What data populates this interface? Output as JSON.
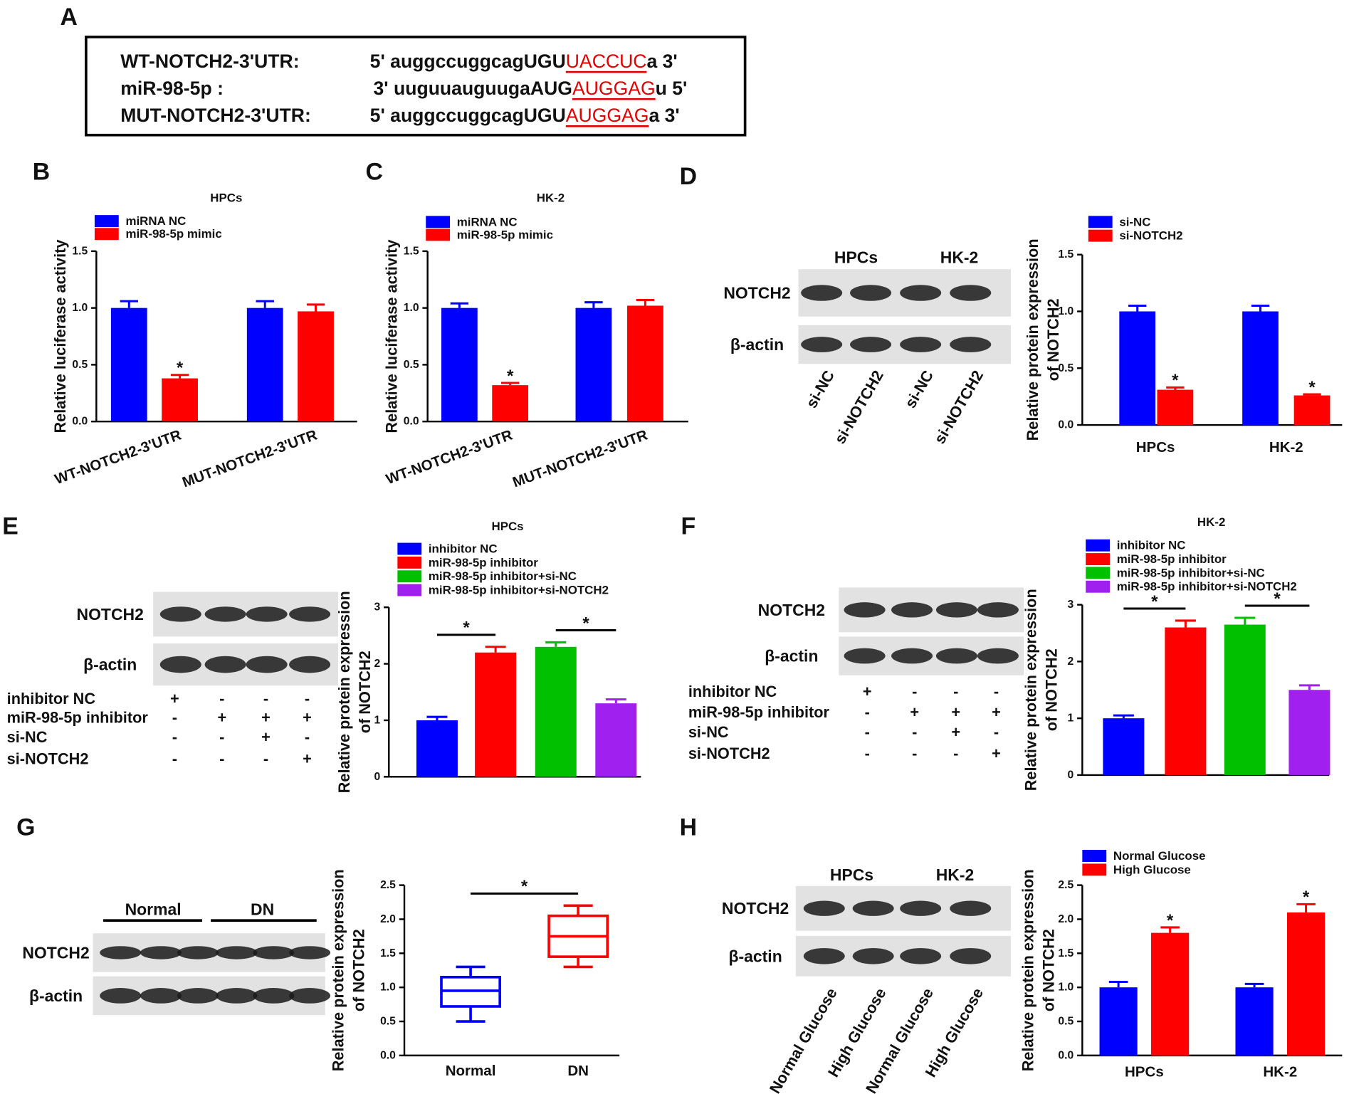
{
  "panel_a": {
    "letter": "A",
    "rows": [
      {
        "label": "WT-NOTCH2-3'UTR:",
        "prefix": "5' auggccuggcagUGU",
        "site": "UACCUC",
        "suffix": "a 3'"
      },
      {
        "label": "miR-98-5p :",
        "prefix": "3' uuguuauguugaAUG",
        "site": "AUGGAG",
        "suffix": "u 5'"
      },
      {
        "label": "MUT-NOTCH2-3'UTR:",
        "prefix": "5' auggccuggcagUGU",
        "site": "AUGGAG",
        "suffix": "a 3'"
      }
    ]
  },
  "blots": [
    {
      "letter": "D",
      "headers": [
        "HPCs",
        "HK-2"
      ],
      "rows": [
        "NOTCH2",
        "β-actin"
      ],
      "lanes": [
        "si-NC",
        "si-NOTCH2",
        "si-NC",
        "si-NOTCH2"
      ]
    },
    {
      "letter": "E",
      "rows": [
        "NOTCH2",
        "β-actin"
      ],
      "conditions": [
        {
          "label": "inhibitor NC",
          "signs": [
            "+",
            "-",
            "-",
            "-"
          ]
        },
        {
          "label": "miR-98-5p inhibitor",
          "signs": [
            "-",
            "+",
            "+",
            "+"
          ]
        },
        {
          "label": "si-NC",
          "signs": [
            "-",
            "-",
            "+",
            "-"
          ]
        },
        {
          "label": "si-NOTCH2",
          "signs": [
            "-",
            "-",
            "-",
            "+"
          ]
        }
      ]
    },
    {
      "letter": "F",
      "rows": [
        "NOTCH2",
        "β-actin"
      ],
      "conditions": [
        {
          "label": "inhibitor NC",
          "signs": [
            "+",
            "-",
            "-",
            "-"
          ]
        },
        {
          "label": "miR-98-5p inhibitor",
          "signs": [
            "-",
            "+",
            "+",
            "+"
          ]
        },
        {
          "label": "si-NC",
          "signs": [
            "-",
            "-",
            "+",
            "-"
          ]
        },
        {
          "label": "si-NOTCH2",
          "signs": [
            "-",
            "-",
            "-",
            "+"
          ]
        }
      ]
    },
    {
      "letter": "G",
      "groups": [
        "Normal",
        "DN"
      ],
      "rows": [
        "NOTCH2",
        "β-actin"
      ]
    },
    {
      "letter": "H",
      "headers": [
        "HPCs",
        "HK-2"
      ],
      "rows": [
        "NOTCH2",
        "β-actin"
      ],
      "lanes": [
        "Normal Glucose",
        "High Glucose",
        "Normal Glucose",
        "High Glucose"
      ]
    }
  ],
  "chart_data": [
    {
      "type": "bar",
      "letter": "B",
      "title": "HPCs",
      "ylabel": [
        "Relative luciferase activity"
      ],
      "categories": [
        "WT-NOTCH2-3'UTR",
        "MUT-NOTCH2-3'UTR"
      ],
      "series": [
        {
          "name": "miRNA NC",
          "color": "#0000ff",
          "values": [
            1.0,
            1.0
          ],
          "errors": [
            0.06,
            0.06
          ],
          "significance": [
            null,
            null
          ]
        },
        {
          "name": "miR-98-5p mimic",
          "color": "#ff0000",
          "values": [
            0.38,
            0.97
          ],
          "errors": [
            0.03,
            0.06
          ],
          "significance": [
            "*",
            null
          ]
        }
      ],
      "ylim": [
        0,
        1.5
      ],
      "yticks": [
        {
          "value": 0,
          "label": "0.0"
        },
        {
          "value": 0.5,
          "label": "0.5"
        },
        {
          "value": 1,
          "label": "1.0"
        },
        {
          "value": 1.5,
          "label": "1.5"
        }
      ]
    },
    {
      "type": "bar",
      "letter": "C",
      "title": "HK-2",
      "ylabel": [
        "Relative luciferase activity"
      ],
      "categories": [
        "WT-NOTCH2-3'UTR",
        "MUT-NOTCH2-3'UTR"
      ],
      "series": [
        {
          "name": "miRNA NC",
          "color": "#0000ff",
          "values": [
            1.0,
            1.0
          ],
          "errors": [
            0.04,
            0.05
          ],
          "significance": [
            null,
            null
          ]
        },
        {
          "name": "miR-98-5p mimic",
          "color": "#ff0000",
          "values": [
            0.32,
            1.02
          ],
          "errors": [
            0.02,
            0.05
          ],
          "significance": [
            "*",
            null
          ]
        }
      ],
      "ylim": [
        0,
        1.5
      ],
      "yticks": [
        {
          "value": 0,
          "label": "0.0"
        },
        {
          "value": 0.5,
          "label": "0.5"
        },
        {
          "value": 1,
          "label": "1.0"
        },
        {
          "value": 1.5,
          "label": "1.5"
        }
      ]
    },
    {
      "type": "bar",
      "ylabel": [
        "Relative protein expression",
        "of NOTCH2"
      ],
      "categories": [
        "HPCs",
        "HK-2"
      ],
      "series": [
        {
          "name": "si-NC",
          "color": "#0000ff",
          "values": [
            1.0,
            1.0
          ],
          "errors": [
            0.05,
            0.05
          ],
          "significance": [
            null,
            null
          ]
        },
        {
          "name": "si-NOTCH2",
          "color": "#ff0000",
          "values": [
            0.31,
            0.26
          ],
          "errors": [
            0.02,
            0.01
          ],
          "significance": [
            "*",
            "*"
          ]
        }
      ],
      "ylim": [
        0,
        1.5
      ],
      "yticks": [
        {
          "value": 0,
          "label": "0.0"
        },
        {
          "value": 0.5,
          "label": "0.5"
        },
        {
          "value": 1,
          "label": "1.0"
        },
        {
          "value": 1.5,
          "label": "1.5"
        }
      ]
    },
    {
      "type": "bar",
      "title": "HPCs",
      "ylabel": [
        "Relative protein expression",
        "of NOTCH2"
      ],
      "categories": [
        null
      ],
      "series": [
        {
          "name": "inhibitor NC",
          "color": "#0000ff",
          "values": [
            1.0
          ],
          "errors": [
            0.06
          ]
        },
        {
          "name": "miR-98-5p inhibitor",
          "color": "#ff0000",
          "values": [
            2.2
          ],
          "errors": [
            0.1
          ]
        },
        {
          "name": "miR-98-5p inhibitor+si-NC",
          "color": "#00c000",
          "values": [
            2.3
          ],
          "errors": [
            0.08
          ]
        },
        {
          "name": "miR-98-5p inhibitor+si-NOTCH2",
          "color": "#a020f0",
          "values": [
            1.3
          ],
          "errors": [
            0.07
          ]
        }
      ],
      "comparisons": [
        {
          "label": "*",
          "between": [
            "inhibitor NC",
            "miR-98-5p inhibitor"
          ]
        },
        {
          "label": "*",
          "between": [
            "miR-98-5p inhibitor+si-NC",
            "miR-98-5p inhibitor+si-NOTCH2"
          ]
        }
      ],
      "ylim": [
        0,
        3
      ],
      "yticks": [
        0,
        1,
        2,
        3
      ]
    },
    {
      "type": "bar",
      "title": "HK-2",
      "ylabel": [
        "Relative protein expression",
        "of NOTCH2"
      ],
      "categories": [
        null
      ],
      "series": [
        {
          "name": "inhibitor NC",
          "color": "#0000ff",
          "values": [
            1.0
          ],
          "errors": [
            0.05
          ]
        },
        {
          "name": "miR-98-5p inhibitor",
          "color": "#ff0000",
          "values": [
            2.6
          ],
          "errors": [
            0.12
          ]
        },
        {
          "name": "miR-98-5p inhibitor+si-NC",
          "color": "#00c000",
          "values": [
            2.65
          ],
          "errors": [
            0.12
          ]
        },
        {
          "name": "miR-98-5p inhibitor+si-NOTCH2",
          "color": "#a020f0",
          "values": [
            1.5
          ],
          "errors": [
            0.08
          ]
        }
      ],
      "comparisons": [
        {
          "label": "*",
          "between": [
            "inhibitor NC",
            "miR-98-5p inhibitor"
          ]
        },
        {
          "label": "*",
          "between": [
            "miR-98-5p inhibitor+si-NC",
            "miR-98-5p inhibitor+si-NOTCH2"
          ]
        }
      ],
      "ylim": [
        0,
        3
      ],
      "yticks": [
        0,
        1,
        2,
        3
      ]
    },
    {
      "type": "box",
      "ylabel": [
        "Relative protein expression",
        "of NOTCH2"
      ],
      "categories": [
        "Normal",
        "DN"
      ],
      "colors": [
        "#0000ff",
        "#ff0000"
      ],
      "boxes": [
        {
          "min": 0.5,
          "q1": 0.72,
          "median": 0.95,
          "q3": 1.15,
          "max": 1.3
        },
        {
          "min": 1.3,
          "q1": 1.45,
          "median": 1.75,
          "q3": 2.05,
          "max": 2.2
        }
      ],
      "comparisons": [
        {
          "label": "*",
          "between": [
            "Normal",
            "DN"
          ]
        }
      ],
      "ylim": [
        0,
        2.5
      ],
      "yticks": [
        {
          "value": 0,
          "label": "0.0"
        },
        {
          "value": 0.5,
          "label": "0.5"
        },
        {
          "value": 1,
          "label": "1.0"
        },
        {
          "value": 1.5,
          "label": "1.5"
        },
        {
          "value": 2,
          "label": "2.0"
        },
        {
          "value": 2.5,
          "label": "2.5"
        }
      ]
    },
    {
      "type": "bar",
      "ylabel": [
        "Relative protein expression",
        "of NOTCH2"
      ],
      "categories": [
        "HPCs",
        "HK-2"
      ],
      "series": [
        {
          "name": "Normal Glucose",
          "color": "#0000ff",
          "values": [
            1.0,
            1.0
          ],
          "errors": [
            0.08,
            0.05
          ],
          "significance": [
            null,
            null
          ]
        },
        {
          "name": "High Glucose",
          "color": "#ff0000",
          "values": [
            1.8,
            2.1
          ],
          "errors": [
            0.08,
            0.12
          ],
          "significance": [
            "*",
            "*"
          ]
        }
      ],
      "ylim": [
        0,
        2.5
      ],
      "yticks": [
        {
          "value": 0,
          "label": "0.0"
        },
        {
          "value": 0.5,
          "label": "0.5"
        },
        {
          "value": 1,
          "label": "1.0"
        },
        {
          "value": 1.5,
          "label": "1.5"
        },
        {
          "value": 2,
          "label": "2.0"
        },
        {
          "value": 2.5,
          "label": "2.5"
        }
      ]
    }
  ]
}
